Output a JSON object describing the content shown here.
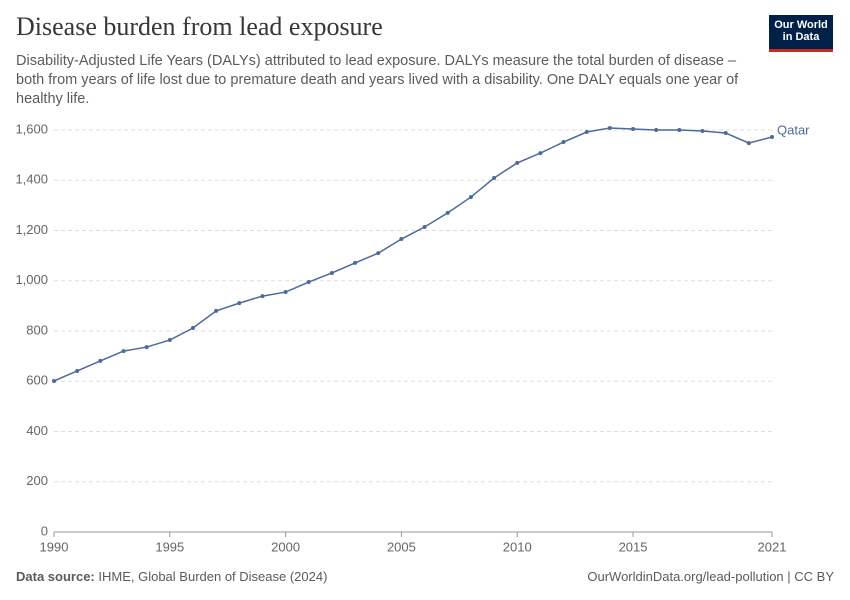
{
  "chart_data": {
    "type": "line",
    "title": "Disease burden from lead exposure",
    "subtitle": "Disability-Adjusted Life Years (DALYs) attributed to lead exposure. DALYs measure the total burden of disease – both from years of life lost due to premature death and years lived with a disability. One DALY equals one year of healthy life.",
    "x": [
      1990,
      1991,
      1992,
      1993,
      1994,
      1995,
      1996,
      1997,
      1998,
      1999,
      2000,
      2001,
      2002,
      2003,
      2004,
      2005,
      2006,
      2007,
      2008,
      2009,
      2010,
      2011,
      2012,
      2013,
      2014,
      2015,
      2016,
      2017,
      2018,
      2019,
      2020,
      2021
    ],
    "series": [
      {
        "name": "Qatar",
        "color": "#4c6a9c",
        "values": [
          601,
          641,
          681,
          720,
          736,
          764,
          812,
          880,
          911,
          939,
          955,
          995,
          1031,
          1071,
          1110,
          1166,
          1214,
          1270,
          1333,
          1409,
          1469,
          1508,
          1552,
          1592,
          1608,
          1604,
          1600,
          1600,
          1596,
          1588,
          1548,
          1572
        ]
      }
    ],
    "xlim": [
      1990,
      2021
    ],
    "xticks": [
      1990,
      1995,
      2000,
      2005,
      2010,
      2015,
      2021
    ],
    "ylim": [
      0,
      1600
    ],
    "yticks": [
      0,
      200,
      400,
      600,
      800,
      {
        "value": 1000,
        "label": "1,000"
      },
      {
        "value": 1200,
        "label": "1,200"
      },
      {
        "value": 1400,
        "label": "1,400"
      },
      {
        "value": 1600,
        "label": "1,600"
      }
    ],
    "grid": true
  },
  "logo": [
    "Our World",
    "in Data"
  ],
  "footer": {
    "source_label": "Data source:",
    "source": "IHME, Global Burden of Disease (2024)",
    "url": "OurWorldinData.org/lead-pollution | CC BY"
  }
}
